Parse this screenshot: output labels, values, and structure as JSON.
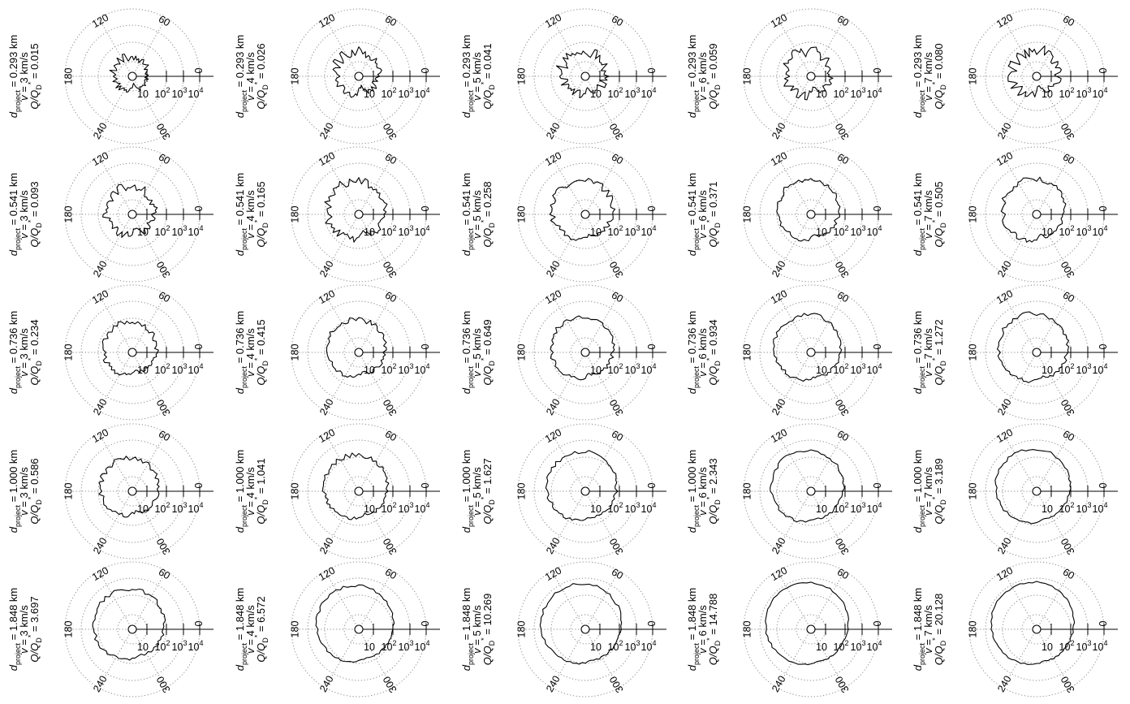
{
  "chart_data": {
    "type": "polar-grid",
    "rows": [
      {
        "d_project": "0.293 km",
        "panels": [
          {
            "v": "3 km/s",
            "q": "0.015",
            "scale": 0.58,
            "rough": 0.22
          },
          {
            "v": "4 km/s",
            "q": "0.026",
            "scale": 0.72,
            "rough": 0.24
          },
          {
            "v": "5 km/s",
            "q": "0.041",
            "scale": 0.74,
            "rough": 0.24
          },
          {
            "v": "6 km/s",
            "q": "0.059",
            "scale": 0.76,
            "rough": 0.24
          },
          {
            "v": "7 km/s",
            "q": "0.080",
            "scale": 0.78,
            "rough": 0.24
          }
        ]
      },
      {
        "d_project": "0.541 km",
        "panels": [
          {
            "v": "3 km/s",
            "q": "0.093",
            "scale": 0.82,
            "rough": 0.18
          },
          {
            "v": "4 km/s",
            "q": "0.165",
            "scale": 0.98,
            "rough": 0.14
          },
          {
            "v": "5 km/s",
            "q": "0.258",
            "scale": 1.02,
            "rough": 0.1
          },
          {
            "v": "6 km/s",
            "q": "0.371",
            "scale": 1.03,
            "rough": 0.08
          },
          {
            "v": "7 km/s",
            "q": "0.505",
            "scale": 1.05,
            "rough": 0.08
          }
        ]
      },
      {
        "d_project": "0.736 km",
        "panels": [
          {
            "v": "3 km/s",
            "q": "0.234",
            "scale": 0.9,
            "rough": 0.1
          },
          {
            "v": "4 km/s",
            "q": "0.415",
            "scale": 0.98,
            "rough": 0.08
          },
          {
            "v": "5 km/s",
            "q": "0.649",
            "scale": 1.05,
            "rough": 0.07
          },
          {
            "v": "6 km/s",
            "q": "0.934",
            "scale": 1.12,
            "rough": 0.06
          },
          {
            "v": "7 km/s",
            "q": "1.272",
            "scale": 1.16,
            "rough": 0.06
          }
        ]
      },
      {
        "d_project": "1.000 km",
        "panels": [
          {
            "v": "3 km/s",
            "q": "0.586",
            "scale": 0.98,
            "rough": 0.08
          },
          {
            "v": "4 km/s",
            "q": "1.041",
            "scale": 1.08,
            "rough": 0.06
          },
          {
            "v": "5 km/s",
            "q": "1.627",
            "scale": 1.18,
            "rough": 0.05
          },
          {
            "v": "6 km/s",
            "q": "2.343",
            "scale": 1.22,
            "rough": 0.04
          },
          {
            "v": "7 km/s",
            "q": "3.189",
            "scale": 1.26,
            "rough": 0.03
          }
        ]
      },
      {
        "d_project": "1.848 km",
        "panels": [
          {
            "v": "3 km/s",
            "q": "3.697",
            "scale": 1.2,
            "rough": 0.05
          },
          {
            "v": "4 km/s",
            "q": "6.572",
            "scale": 1.3,
            "rough": 0.03
          },
          {
            "v": "5 km/s",
            "q": "10.269",
            "scale": 1.36,
            "rough": 0.03
          },
          {
            "v": "6 km/s",
            "q": "14.788",
            "scale": 1.4,
            "rough": 0.02
          },
          {
            "v": "7 km/s",
            "q": "20.128",
            "scale": 1.4,
            "rough": 0.02
          }
        ]
      }
    ],
    "angle_labels": [
      "60",
      "120",
      "180",
      "240",
      "300",
      "0"
    ],
    "radial_tick_labels": [
      "10",
      "10",
      "10",
      "10"
    ],
    "radial_tick_exponents": [
      "",
      "2",
      "3",
      "4"
    ],
    "label_prefix": {
      "d": "d",
      "d_sub": "project",
      "v": "v",
      "q": "Q/Q",
      "q_sub": "D",
      "q_sup": "*"
    },
    "grid": true
  }
}
